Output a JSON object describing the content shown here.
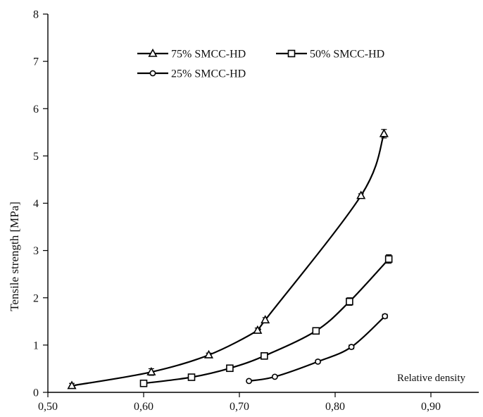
{
  "chart_data": {
    "type": "line",
    "xlabel": "Relative density",
    "ylabel": "Tensile strength [MPa]",
    "xlim": [
      0.5,
      0.95
    ],
    "ylim": [
      0,
      8
    ],
    "xticks": [
      "0,50",
      "0,60",
      "0,70",
      "0,80",
      "0,90"
    ],
    "xtick_values": [
      0.5,
      0.6,
      0.7,
      0.8,
      0.9
    ],
    "yticks": [
      "0",
      "1",
      "2",
      "3",
      "4",
      "5",
      "6",
      "7",
      "8"
    ],
    "ytick_values": [
      0,
      1,
      2,
      3,
      4,
      5,
      6,
      7,
      8
    ],
    "grid": false,
    "legend_position": "top",
    "series": [
      {
        "name": "75% SMCC-HD",
        "marker": "triangle",
        "color": "#000000",
        "x": [
          0.525,
          0.608,
          0.668,
          0.719,
          0.727,
          0.827,
          0.851
        ],
        "y": [
          0.14,
          0.43,
          0.79,
          1.31,
          1.53,
          4.16,
          5.47
        ],
        "error": [
          0.05,
          0.07,
          0.04,
          0.05,
          0.05,
          0.04,
          0.09
        ]
      },
      {
        "name": "50% SMCC-HD",
        "marker": "square",
        "color": "#000000",
        "x": [
          0.6,
          0.65,
          0.69,
          0.726,
          0.78,
          0.815,
          0.856
        ],
        "y": [
          0.19,
          0.32,
          0.51,
          0.77,
          1.3,
          1.92,
          2.82
        ],
        "error": [
          0.02,
          0.03,
          0.03,
          0.04,
          0.05,
          0.08,
          0.09
        ]
      },
      {
        "name": "25% SMCC-HD",
        "marker": "circle",
        "color": "#000000",
        "x": [
          0.71,
          0.737,
          0.782,
          0.817,
          0.852
        ],
        "y": [
          0.24,
          0.33,
          0.65,
          0.96,
          1.61
        ],
        "error": [
          0.02,
          0.02,
          0.03,
          0.04,
          0.04
        ]
      }
    ]
  }
}
